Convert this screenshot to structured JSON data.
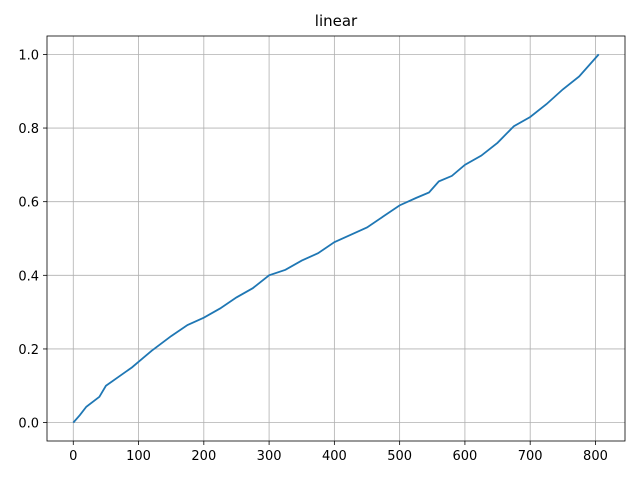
{
  "chart_data": {
    "type": "line",
    "title": "linear",
    "x": [
      0,
      10,
      20,
      40,
      50,
      70,
      90,
      100,
      120,
      150,
      175,
      200,
      225,
      250,
      275,
      300,
      325,
      350,
      375,
      400,
      425,
      450,
      475,
      500,
      525,
      545,
      560,
      580,
      600,
      625,
      650,
      675,
      700,
      725,
      750,
      775,
      805
    ],
    "values": [
      0,
      0.02,
      0.043,
      0.07,
      0.1,
      0.125,
      0.15,
      0.165,
      0.195,
      0.235,
      0.265,
      0.285,
      0.31,
      0.34,
      0.365,
      0.4,
      0.415,
      0.44,
      0.46,
      0.49,
      0.51,
      0.53,
      0.56,
      0.59,
      0.61,
      0.625,
      0.655,
      0.67,
      0.7,
      0.725,
      0.76,
      0.805,
      0.83,
      0.865,
      0.905,
      0.94,
      1.0
    ],
    "color": "#1f77b4",
    "xlim": [
      -40.25,
      845.25
    ],
    "xticks": [
      0,
      100,
      200,
      300,
      400,
      500,
      600,
      700,
      800
    ],
    "ylim": [
      -0.05,
      1.05
    ],
    "yticks": [
      {
        "value": 0,
        "label": "0.0"
      },
      0.2,
      0.4,
      0.6,
      0.8,
      {
        "value": 1,
        "label": "1.0"
      }
    ],
    "grid": true
  }
}
